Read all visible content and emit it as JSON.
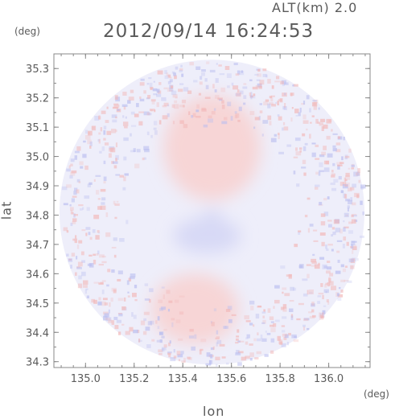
{
  "header": {
    "altitude": "ALT(km) 2.0",
    "datetime": "2012/09/14 16:24:53"
  },
  "chart_data": {
    "type": "heatmap",
    "title": "2012/09/14 16:24:53",
    "subtitle": "ALT(km) 2.0",
    "xlabel": "lon",
    "ylabel": "lat",
    "x_unit": "(deg)",
    "y_unit": "(deg)",
    "xlim": [
      134.87,
      136.17
    ],
    "ylim": [
      34.28,
      35.35
    ],
    "x_ticks": [
      135.0,
      135.2,
      135.4,
      135.6,
      135.8,
      136.0
    ],
    "x_tick_labels": [
      "135.0",
      "135.2",
      "135.4",
      "135.6",
      "135.8",
      "136.0"
    ],
    "y_ticks": [
      34.3,
      34.4,
      34.5,
      34.6,
      34.7,
      34.8,
      34.9,
      35.0,
      35.1,
      35.2,
      35.3
    ],
    "y_tick_labels": [
      "34.3",
      "34.4",
      "34.5",
      "34.6",
      "34.7",
      "34.8",
      "34.9",
      "35.0",
      "35.1",
      "35.2",
      "35.3"
    ],
    "domain_center": [
      135.52,
      34.81
    ],
    "domain_radius_lat": 0.52,
    "colors": {
      "positive": "#f8d4d4",
      "negative": "#d6d8f5",
      "background_field": "#eeeefa",
      "axis": "#888888"
    },
    "features": [
      {
        "name": "positive-region-north",
        "sign": "positive",
        "lon": 135.52,
        "lat": 35.03,
        "rlon": 0.2,
        "rlat": 0.18
      },
      {
        "name": "negative-region-center",
        "sign": "negative",
        "lon": 135.5,
        "lat": 34.73,
        "rlon": 0.14,
        "rlat": 0.06
      },
      {
        "name": "negative-core-center",
        "sign": "negative",
        "lon": 135.52,
        "lat": 34.79,
        "rlon": 0.04,
        "rlat": 0.03
      },
      {
        "name": "positive-region-south",
        "sign": "positive",
        "lon": 135.45,
        "lat": 34.48,
        "rlon": 0.18,
        "rlat": 0.12
      }
    ]
  }
}
